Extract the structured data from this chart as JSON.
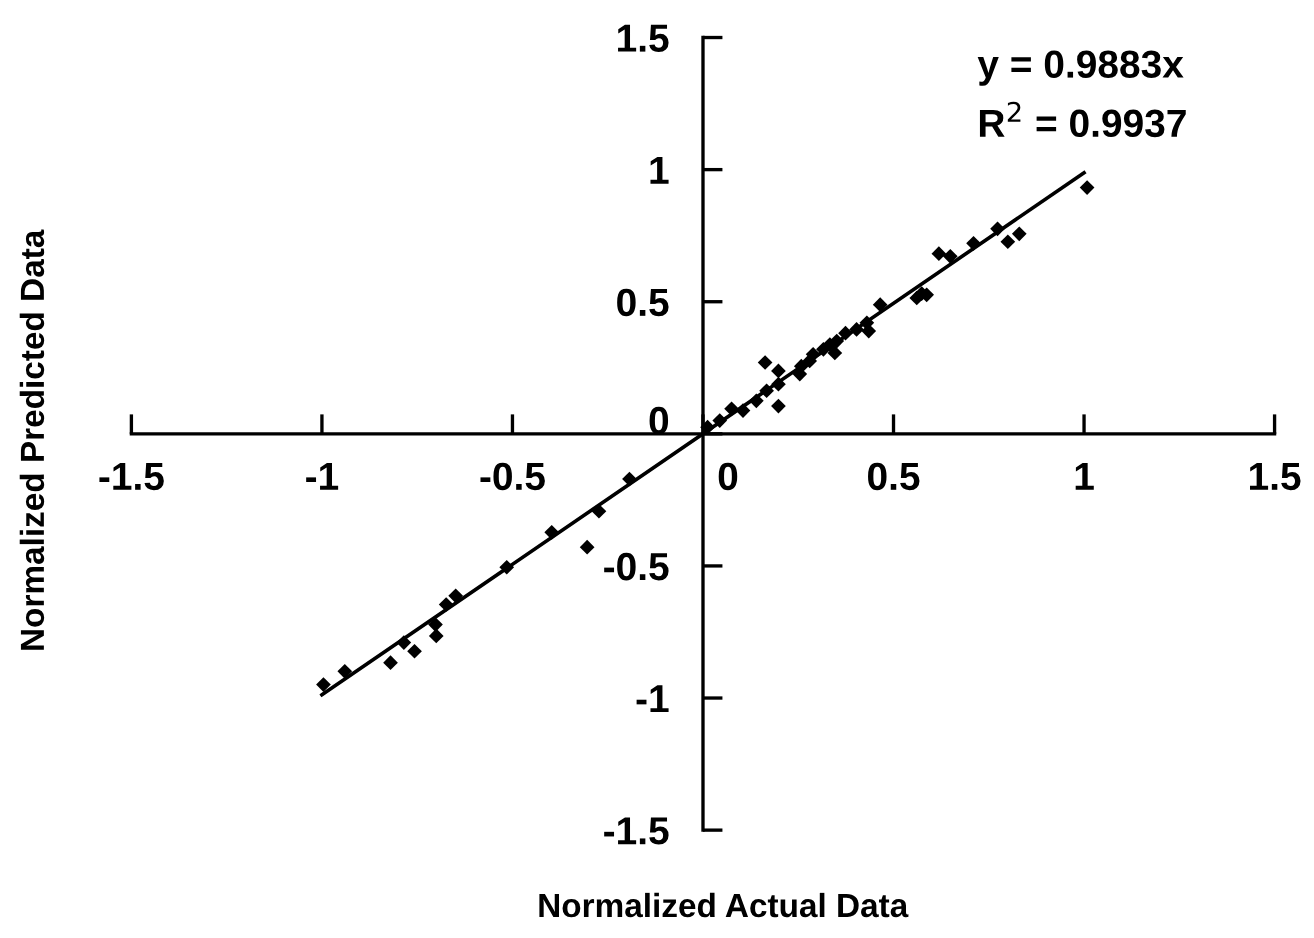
{
  "chart_data": {
    "type": "scatter",
    "xlabel": "Normalized Actual Data",
    "ylabel": "Normalized Predicted Data",
    "xlim": [
      -1.5,
      1.5
    ],
    "ylim": [
      -1.5,
      1.5
    ],
    "xticks": [
      -1.5,
      -1,
      -0.5,
      0,
      0.5,
      1,
      1.5
    ],
    "yticks": [
      -1.5,
      -1,
      -0.5,
      0,
      0.5,
      1,
      1.5
    ],
    "grid": false,
    "legend": false,
    "annotations": [
      "y = 0.9883x",
      "R$^{2}$ = 0.9937"
    ],
    "series": [
      {
        "marker": "diamond",
        "color": "#000000",
        "x": [
          1.008,
          0.83,
          0.8,
          0.773,
          0.71,
          0.649,
          0.619,
          0.587,
          0.561,
          0.574,
          0.465,
          0.435,
          0.43,
          0.403,
          0.374,
          0.351,
          0.346,
          0.333,
          0.316,
          0.289,
          0.28,
          0.258,
          0.254,
          0.198,
          0.163,
          0.198,
          0.198,
          0.167,
          0.14,
          0.105,
          0.075,
          0.044,
          0.012,
          -0.996,
          -0.94,
          -0.82,
          -0.785,
          -0.757,
          -0.7,
          -0.702,
          -0.674,
          -0.649,
          -0.515,
          -0.397,
          -0.304,
          -0.273,
          -0.193
        ],
        "values": [
          0.932,
          0.757,
          0.727,
          0.776,
          0.721,
          0.672,
          0.682,
          0.526,
          0.514,
          0.531,
          0.489,
          0.389,
          0.42,
          0.395,
          0.381,
          0.351,
          0.306,
          0.338,
          0.32,
          0.301,
          0.276,
          0.256,
          0.226,
          0.238,
          0.27,
          0.188,
          0.105,
          0.163,
          0.125,
          0.088,
          0.095,
          0.05,
          0.025,
          -0.949,
          -0.899,
          -0.866,
          -0.79,
          -0.823,
          -0.765,
          -0.722,
          -0.646,
          -0.613,
          -0.505,
          -0.373,
          -0.429,
          -0.293,
          -0.171
        ]
      },
      {
        "type": "line",
        "color": "#000000",
        "x": [
          -1,
          1
        ],
        "values": [
          -0.988,
          0.988
        ]
      }
    ]
  }
}
